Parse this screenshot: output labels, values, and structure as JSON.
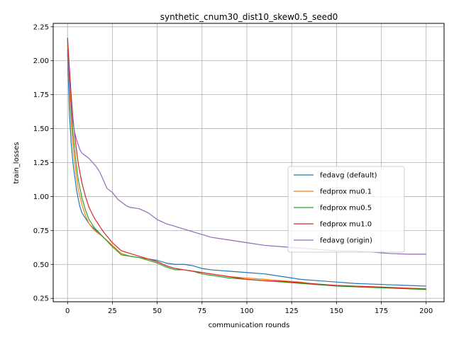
{
  "chart_data": {
    "type": "line",
    "title": "synthetic_cnum30_dist10_skew0.5_seed0",
    "xlabel": "communication rounds",
    "ylabel": "train_losses",
    "xlim": [
      -8,
      210
    ],
    "ylim": [
      0.225,
      2.275
    ],
    "xticks": [
      0,
      25,
      50,
      75,
      100,
      125,
      150,
      175,
      200
    ],
    "yticks": [
      0.25,
      0.5,
      0.75,
      1.0,
      1.25,
      1.5,
      1.75,
      2.0,
      2.25
    ],
    "grid": true,
    "legend_position": "center-right",
    "series": [
      {
        "name": "fedavg (default)",
        "color": "#1f77b4",
        "x": [
          0,
          1,
          2,
          3,
          4,
          5,
          6,
          7,
          8,
          10,
          12,
          15,
          20,
          25,
          30,
          35,
          40,
          45,
          50,
          55,
          60,
          65,
          70,
          75,
          80,
          90,
          100,
          110,
          120,
          130,
          140,
          150,
          160,
          170,
          180,
          190,
          200
        ],
        "y": [
          2.08,
          1.62,
          1.4,
          1.25,
          1.15,
          1.05,
          0.98,
          0.92,
          0.88,
          0.84,
          0.8,
          0.76,
          0.7,
          0.64,
          0.58,
          0.56,
          0.55,
          0.54,
          0.53,
          0.51,
          0.5,
          0.5,
          0.49,
          0.47,
          0.46,
          0.45,
          0.44,
          0.43,
          0.41,
          0.39,
          0.38,
          0.37,
          0.36,
          0.355,
          0.35,
          0.345,
          0.34
        ]
      },
      {
        "name": "fedprox mu0.1",
        "color": "#ff7f0e",
        "x": [
          0,
          1,
          2,
          3,
          4,
          5,
          6,
          8,
          10,
          12,
          15,
          20,
          25,
          30,
          35,
          40,
          45,
          50,
          55,
          60,
          65,
          70,
          75,
          80,
          90,
          100,
          110,
          120,
          130,
          140,
          150,
          160,
          170,
          180,
          190,
          200
        ],
        "y": [
          2.12,
          1.8,
          1.55,
          1.38,
          1.25,
          1.14,
          1.05,
          0.94,
          0.86,
          0.8,
          0.75,
          0.7,
          0.64,
          0.58,
          0.56,
          0.55,
          0.54,
          0.52,
          0.49,
          0.47,
          0.46,
          0.45,
          0.44,
          0.43,
          0.41,
          0.4,
          0.39,
          0.38,
          0.37,
          0.35,
          0.345,
          0.34,
          0.335,
          0.33,
          0.325,
          0.32
        ]
      },
      {
        "name": "fedprox mu0.5",
        "color": "#2ca02c",
        "x": [
          0,
          1,
          2,
          3,
          4,
          5,
          6,
          8,
          10,
          12,
          15,
          20,
          25,
          30,
          35,
          40,
          45,
          50,
          55,
          60,
          65,
          70,
          75,
          80,
          90,
          100,
          110,
          120,
          130,
          140,
          150,
          160,
          170,
          180,
          190,
          200
        ],
        "y": [
          2.15,
          1.88,
          1.65,
          1.47,
          1.34,
          1.22,
          1.12,
          0.99,
          0.9,
          0.83,
          0.77,
          0.7,
          0.63,
          0.57,
          0.56,
          0.55,
          0.53,
          0.51,
          0.48,
          0.46,
          0.46,
          0.45,
          0.43,
          0.42,
          0.4,
          0.39,
          0.38,
          0.37,
          0.36,
          0.35,
          0.34,
          0.335,
          0.33,
          0.325,
          0.32,
          0.315
        ]
      },
      {
        "name": "fedprox mu1.0",
        "color": "#d62728",
        "x": [
          0,
          1,
          2,
          3,
          4,
          5,
          6,
          8,
          10,
          12,
          15,
          20,
          25,
          30,
          35,
          40,
          45,
          50,
          55,
          60,
          65,
          70,
          75,
          80,
          90,
          100,
          110,
          120,
          130,
          140,
          150,
          160,
          170,
          180,
          190,
          200
        ],
        "y": [
          2.17,
          1.95,
          1.75,
          1.58,
          1.45,
          1.34,
          1.24,
          1.1,
          1.0,
          0.92,
          0.84,
          0.74,
          0.66,
          0.6,
          0.58,
          0.56,
          0.54,
          0.52,
          0.49,
          0.47,
          0.46,
          0.45,
          0.44,
          0.43,
          0.41,
          0.39,
          0.38,
          0.375,
          0.365,
          0.355,
          0.345,
          0.34,
          0.335,
          0.33,
          0.325,
          0.32
        ]
      },
      {
        "name": "fedavg (origin)",
        "color": "#9467bd",
        "x": [
          0,
          1,
          2,
          3,
          4,
          5,
          6,
          7,
          8,
          10,
          12,
          14,
          16,
          18,
          20,
          22,
          25,
          28,
          30,
          33,
          35,
          40,
          45,
          50,
          55,
          60,
          65,
          70,
          75,
          80,
          90,
          100,
          110,
          120,
          130,
          140,
          150,
          160,
          170,
          180,
          190,
          200
        ],
        "y": [
          2.05,
          1.85,
          1.68,
          1.55,
          1.47,
          1.42,
          1.38,
          1.34,
          1.32,
          1.3,
          1.28,
          1.25,
          1.22,
          1.18,
          1.12,
          1.06,
          1.03,
          0.98,
          0.96,
          0.93,
          0.92,
          0.91,
          0.88,
          0.83,
          0.8,
          0.78,
          0.76,
          0.74,
          0.72,
          0.7,
          0.68,
          0.66,
          0.64,
          0.63,
          0.62,
          0.61,
          0.6,
          0.6,
          0.59,
          0.58,
          0.575,
          0.575
        ]
      }
    ]
  }
}
